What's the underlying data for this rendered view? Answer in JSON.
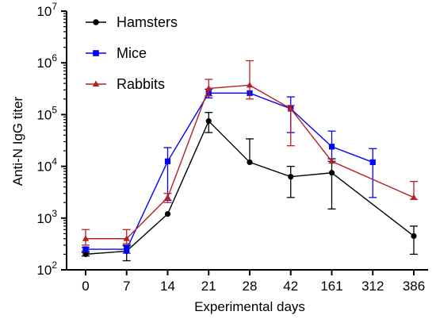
{
  "chart_data": {
    "type": "line",
    "xlabel": "Experimental days",
    "ylabel": "Anti-N IgG titer",
    "categories": [
      "0",
      "7",
      "14",
      "21",
      "28",
      "42",
      "161",
      "312",
      "386"
    ],
    "y_scale": "log",
    "ylim": [
      100,
      10000000
    ],
    "y_ticks": [
      {
        "base": "10",
        "exp": "2"
      },
      {
        "base": "10",
        "exp": "3"
      },
      {
        "base": "10",
        "exp": "4"
      },
      {
        "base": "10",
        "exp": "5"
      },
      {
        "base": "10",
        "exp": "6"
      },
      {
        "base": "10",
        "exp": "7"
      }
    ],
    "legend_position": "top-left",
    "series": [
      {
        "name": "Hamsters",
        "color": "#000000",
        "marker": "circle",
        "values": [
          200,
          230,
          1200,
          75000,
          12000,
          6300,
          7500,
          null,
          450
        ],
        "err_low": [
          185,
          150,
          null,
          45000,
          null,
          2500,
          1500,
          null,
          200
        ],
        "err_high": [
          215,
          290,
          null,
          110000,
          34000,
          10000,
          14000,
          null,
          700
        ]
      },
      {
        "name": "Mice",
        "color": "#0000ff",
        "marker": "square",
        "values": [
          250,
          250,
          12500,
          260000,
          260000,
          130000,
          24000,
          12000,
          null
        ],
        "err_low": [
          230,
          210,
          2200,
          210000,
          null,
          45000,
          12500,
          2500,
          null
        ],
        "err_high": [
          270,
          300,
          23000,
          310000,
          null,
          220000,
          48000,
          22000,
          null
        ]
      },
      {
        "name": "Rabbits",
        "color": "#b22222",
        "marker": "triangle",
        "values": [
          400,
          400,
          2500,
          320000,
          370000,
          130000,
          12500,
          null,
          2500
        ],
        "err_low": [
          300,
          320,
          2000,
          230000,
          200000,
          25000,
          null,
          null,
          2300
        ],
        "err_high": [
          600,
          600,
          3000,
          480000,
          1100000,
          150000,
          null,
          null,
          5100
        ]
      }
    ]
  }
}
